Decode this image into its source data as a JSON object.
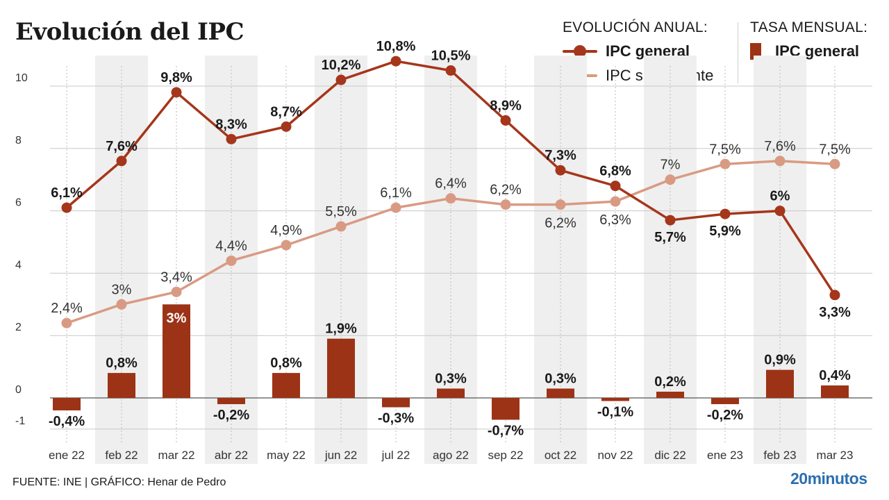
{
  "title": "Evolución del IPC",
  "legend": {
    "annual_heading": "EVOLUCIÓN ANUAL:",
    "monthly_heading": "TASA MENSUAL:",
    "general_label": "IPC general",
    "core_label": "IPC subyacente",
    "monthly_label": "IPC general"
  },
  "colors": {
    "general": "#a5361b",
    "core": "#d99a83",
    "bar": "#9c3316",
    "band": "#efefef",
    "grid": "#c8c8c8",
    "zero": "#555555"
  },
  "chart_data": {
    "type": "line+bar",
    "categories": [
      "ene 22",
      "feb 22",
      "mar 22",
      "abr 22",
      "may 22",
      "jun 22",
      "jul 22",
      "ago 22",
      "sep 22",
      "oct 22",
      "nov 22",
      "dic 22",
      "ene 23",
      "feb 23",
      "mar 23"
    ],
    "yticks": [
      10,
      8,
      6,
      4,
      2,
      0,
      -1
    ],
    "ylim": [
      -1.2,
      10.8
    ],
    "grid": true,
    "series": [
      {
        "name": "IPC general",
        "kind": "line",
        "values": [
          6.1,
          7.6,
          9.8,
          8.3,
          8.7,
          10.2,
          10.8,
          10.5,
          8.9,
          7.3,
          6.8,
          5.7,
          5.9,
          6.0,
          3.3
        ],
        "labels": [
          "6,1%",
          "7,6%",
          "9,8%",
          "8,3%",
          "8,7%",
          "10,2%",
          "10,8%",
          "10,5%",
          "8,9%",
          "7,3%",
          "6,8%",
          "5,7%",
          "5,9%",
          "6%",
          "3,3%"
        ]
      },
      {
        "name": "IPC subyacente",
        "kind": "line",
        "values": [
          2.4,
          3.0,
          3.4,
          4.4,
          4.9,
          5.5,
          6.1,
          6.4,
          6.2,
          6.2,
          6.3,
          7.0,
          7.5,
          7.6,
          7.5
        ],
        "labels": [
          "2,4%",
          "3%",
          "3,4%",
          "4,4%",
          "4,9%",
          "5,5%",
          "6,1%",
          "6,4%",
          "6,2%",
          "6,2%",
          "6,3%",
          "7%",
          "7,5%",
          "7,6%",
          "7,5%"
        ]
      },
      {
        "name": "IPC general",
        "kind": "bar",
        "values": [
          -0.4,
          0.8,
          3.0,
          -0.2,
          0.8,
          1.9,
          -0.3,
          0.3,
          -0.7,
          0.3,
          -0.1,
          0.2,
          -0.2,
          0.9,
          0.4
        ],
        "labels": [
          "-0,4%",
          "0,8%",
          "3%",
          "-0,2%",
          "0,8%",
          "1,9%",
          "-0,3%",
          "0,3%",
          "-0,7%",
          "0,3%",
          "-0,1%",
          "0,2%",
          "-0,2%",
          "0,9%",
          "0,4%"
        ]
      }
    ]
  },
  "footer": "FUENTE: INE  |  GRÁFICO: Henar de Pedro",
  "brand": "20minutos"
}
